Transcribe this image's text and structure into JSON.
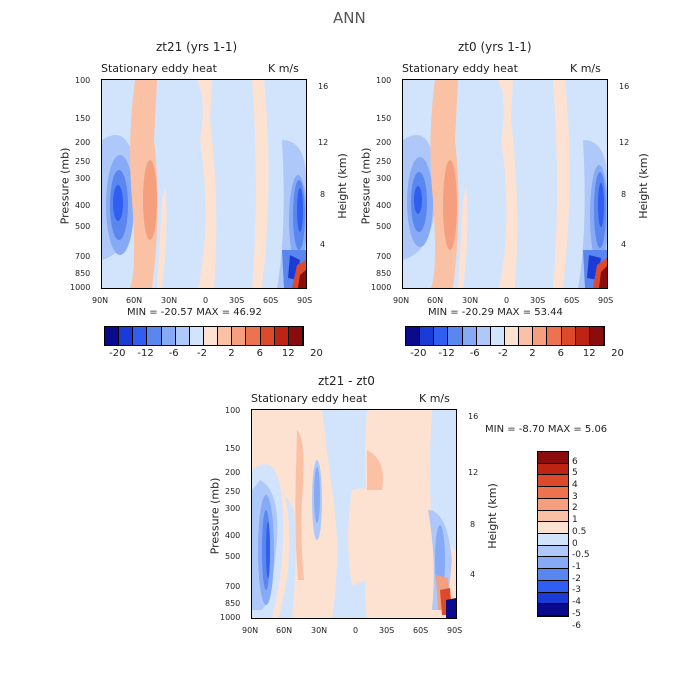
{
  "page": {
    "title": "ANN"
  },
  "panels": [
    {
      "title": "zt21  (yrs 1-1)",
      "subtitle_left": "Stationary eddy heat",
      "subtitle_right": "K m/s",
      "ylabel_left": "Pressure (mb)",
      "ylabel_right": "Height (km)",
      "stats": "MIN = -20.57   MAX = 46.92"
    },
    {
      "title": "zt0  (yrs 1-1)",
      "subtitle_left": "Stationary eddy heat",
      "subtitle_right": "K m/s",
      "ylabel_left": "Pressure (mb)",
      "ylabel_right": "Height (km)",
      "stats": "MIN = -20.29   MAX = 53.44"
    },
    {
      "title": "zt21 - zt0",
      "subtitle_left": "Stationary eddy heat",
      "subtitle_right": "K m/s",
      "ylabel_left": "Pressure (mb)",
      "ylabel_right": "Height (km)",
      "stats": "MIN =  -8.70   MAX =   5.06"
    }
  ],
  "colorbars": {
    "top_labels": [
      "-20",
      "-12",
      "-6",
      "-2",
      "2",
      "6",
      "12",
      "20"
    ],
    "top_colors": [
      "#0a0a8c",
      "#1a3bd6",
      "#2f5ef0",
      "#5a86f0",
      "#86aaf5",
      "#afc8fa",
      "#d2e4fb",
      "#fde2d2",
      "#fbc1a4",
      "#f69f7e",
      "#ed7350",
      "#dc4a2b",
      "#bd2414",
      "#8b0c0c"
    ],
    "diff_labels": [
      "6",
      "5",
      "4",
      "3",
      "2",
      "1",
      "0.5",
      "0",
      "-0.5",
      "-1",
      "-2",
      "-3",
      "-4",
      "-5",
      "-6"
    ],
    "diff_colors": [
      "#8b0c0c",
      "#bd2414",
      "#dc4a2b",
      "#ed7350",
      "#f69f7e",
      "#fbc1a4",
      "#fde2d2",
      "#d2e4fb",
      "#afc8fa",
      "#86aaf5",
      "#5a86f0",
      "#2f5ef0",
      "#1a3bd6",
      "#0a0a8c"
    ]
  },
  "chart_data": [
    {
      "type": "heatmap",
      "title": "zt21  (yrs 1-1)",
      "xlabel": "",
      "ylabel": "Pressure (mb)",
      "ylabel_right": "Height (km)",
      "x_ticks": [
        "90N",
        "60N",
        "30N",
        "0",
        "30S",
        "60S",
        "90S"
      ],
      "y_ticks": [
        "100",
        "150",
        "200",
        "250",
        "300",
        "400",
        "500",
        "700",
        "850",
        "1000"
      ],
      "y_right_ticks": [
        "16",
        "12",
        "8",
        "4"
      ],
      "units": "K m/s",
      "min": -20.57,
      "max": 46.92
    },
    {
      "type": "heatmap",
      "title": "zt0  (yrs 1-1)",
      "xlabel": "",
      "ylabel": "Pressure (mb)",
      "ylabel_right": "Height (km)",
      "x_ticks": [
        "90N",
        "60N",
        "30N",
        "0",
        "30S",
        "60S",
        "90S"
      ],
      "y_ticks": [
        "100",
        "150",
        "200",
        "250",
        "300",
        "400",
        "500",
        "700",
        "850",
        "1000"
      ],
      "y_right_ticks": [
        "16",
        "12",
        "8",
        "4"
      ],
      "units": "K m/s",
      "min": -20.29,
      "max": 53.44
    },
    {
      "type": "heatmap",
      "title": "zt21 - zt0",
      "xlabel": "",
      "ylabel": "Pressure (mb)",
      "ylabel_right": "Height (km)",
      "x_ticks": [
        "90N",
        "60N",
        "30N",
        "0",
        "30S",
        "60S",
        "90S"
      ],
      "y_ticks": [
        "100",
        "150",
        "200",
        "250",
        "300",
        "400",
        "500",
        "700",
        "850",
        "1000"
      ],
      "y_right_ticks": [
        "16",
        "12",
        "8",
        "4"
      ],
      "units": "K m/s",
      "min": -8.7,
      "max": 5.06
    }
  ]
}
